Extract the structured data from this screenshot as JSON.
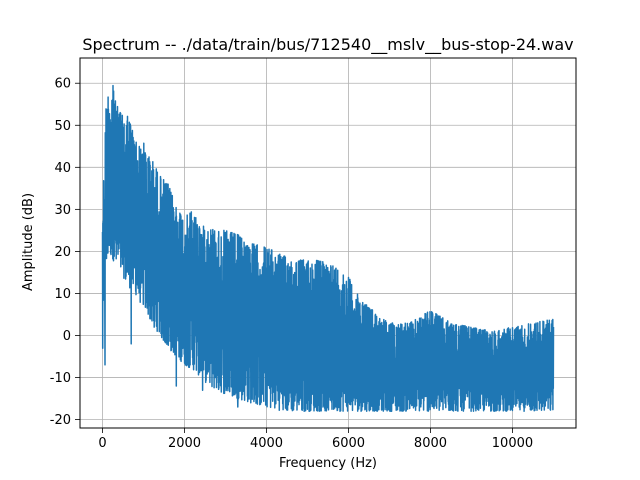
{
  "chart_data": {
    "type": "line",
    "title": "Spectrum -- ./data/train/bus/712540__mslv__bus-stop-24.wav",
    "xlabel": "Frequency (Hz)",
    "ylabel": "Amplitude (dB)",
    "xlim": [
      -550,
      11550
    ],
    "ylim": [
      -22,
      66
    ],
    "xticks": [
      0,
      2000,
      4000,
      6000,
      8000,
      10000
    ],
    "yticks": [
      -20,
      -10,
      0,
      10,
      20,
      30,
      40,
      50,
      60
    ],
    "grid": true,
    "series_color": "#1f77b4",
    "envelope": {
      "freq": [
        0,
        40,
        80,
        120,
        160,
        200,
        260,
        320,
        400,
        500,
        600,
        700,
        800,
        900,
        1000,
        1100,
        1200,
        1400,
        1600,
        1800,
        2000,
        2200,
        2400,
        2600,
        2800,
        3000,
        3300,
        3600,
        4000,
        4400,
        4800,
        5200,
        5600,
        6000,
        6200,
        6400,
        6700,
        7000,
        7500,
        8000,
        8500,
        9000,
        9500,
        10000,
        10500,
        11000
      ],
      "upper": [
        34,
        40,
        54,
        58,
        57,
        58,
        62,
        55,
        54,
        52,
        53,
        50,
        47,
        45,
        46,
        43,
        42,
        38,
        36,
        31,
        28,
        30,
        26,
        26,
        25,
        25,
        24,
        22,
        21,
        19,
        18,
        18,
        17,
        14,
        10,
        8,
        5,
        3,
        3,
        6,
        3,
        2,
        1,
        2,
        3,
        4
      ],
      "lower": [
        -7,
        5,
        12,
        18,
        20,
        19,
        18,
        16,
        15,
        14,
        12,
        11,
        10,
        8,
        7,
        5,
        3,
        0,
        -3,
        -5,
        -7,
        -8,
        -10,
        -12,
        -13,
        -14,
        -15,
        -16,
        -17,
        -18,
        -18,
        -18,
        -18,
        -18,
        -18,
        -18,
        -18,
        -18,
        -18,
        -18,
        -18,
        -18,
        -18,
        -18,
        -18,
        -18
      ]
    },
    "dips": [
      {
        "x": 60,
        "y": -7
      },
      {
        "x": 700,
        "y": -2
      },
      {
        "x": 1260,
        "y": 2
      },
      {
        "x": 1800,
        "y": -12
      },
      {
        "x": 2440,
        "y": -13
      },
      {
        "x": 3300,
        "y": -17
      }
    ]
  }
}
